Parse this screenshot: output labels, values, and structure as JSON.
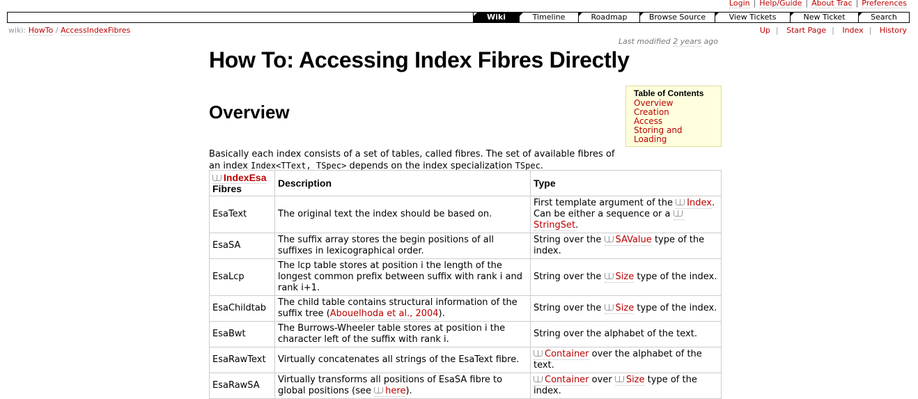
{
  "metanav": [
    "Login",
    "Help/Guide",
    "About Trac",
    "Preferences"
  ],
  "mainnav": [
    "Wiki",
    "Timeline",
    "Roadmap",
    "Browse Source",
    "View Tickets",
    "New Ticket",
    "Search"
  ],
  "breadcrumb": {
    "prefix": "wiki:",
    "items": [
      "HowTo",
      "AccessIndexFibres"
    ],
    "separator": "/"
  },
  "ctxnav": [
    "Up",
    "Start Page",
    "Index",
    "History"
  ],
  "last_modified": {
    "prefix": "Last modified",
    "age": "2 years",
    "suffix": "ago"
  },
  "page_title": "How To: Accessing Index Fibres Directly",
  "section_title": "Overview",
  "toc": {
    "title": "Table of Contents",
    "items": [
      "Overview",
      "Creation",
      "Access",
      "Storing and Loading"
    ]
  },
  "intro": {
    "text1": "Basically each index consists of a set of tables, called fibres. The set of available fibres of an index",
    "code1": "Index<TText, TSpec>",
    "text2": "depends on the index specialization",
    "code2": "TSpec",
    "text3": "."
  },
  "table": {
    "header": {
      "col1_link": "IndexEsa",
      "col1_text": "Fibres",
      "col2": "Description",
      "col3": "Type"
    },
    "rows": [
      {
        "name": "EsaText",
        "desc": "The original text the index should be based on.",
        "type_a": "First template argument of the",
        "type_link1": "Index",
        "type_b": ". Can be either a sequence or a",
        "type_link2": "StringSet",
        "type_c": "."
      },
      {
        "name": "EsaSA",
        "desc": "The suffix array stores the begin positions of all suffixes in lexicographical order.",
        "type_a": "String over the",
        "type_link1": "SAValue",
        "type_b": "type of the index."
      },
      {
        "name": "EsaLcp",
        "desc": "The lcp table stores at position i the length of the longest common prefix between suffix with rank i and rank i+1.",
        "type_a": "String over the",
        "type_link1": "Size",
        "type_b": "type of the index."
      },
      {
        "name": "EsaChildtab",
        "desc_a": "The child table contains structural information of the suffix tree (",
        "desc_link": "Abouelhoda et al., 2004",
        "desc_b": ").",
        "type_a": "String over the",
        "type_link1": "Size",
        "type_b": "type of the index."
      },
      {
        "name": "EsaBwt",
        "desc": "The Burrows-Wheeler table stores at position i the character left of the suffix with rank i.",
        "type": "String over the alphabet of the text."
      },
      {
        "name": "EsaRawText",
        "desc": "Virtually concatenates all strings of the EsaText fibre.",
        "type_link1": "Container",
        "type_b": "over the alphabet of the text."
      },
      {
        "name": "EsaRawSA",
        "desc_a": "Virtually transforms all positions of EsaSA fibre to global positions (see",
        "desc_link": "here",
        "desc_b": ").",
        "type_link1": "Container",
        "type_a": "over",
        "type_link2": "Size",
        "type_b": "type of the index."
      }
    ]
  }
}
